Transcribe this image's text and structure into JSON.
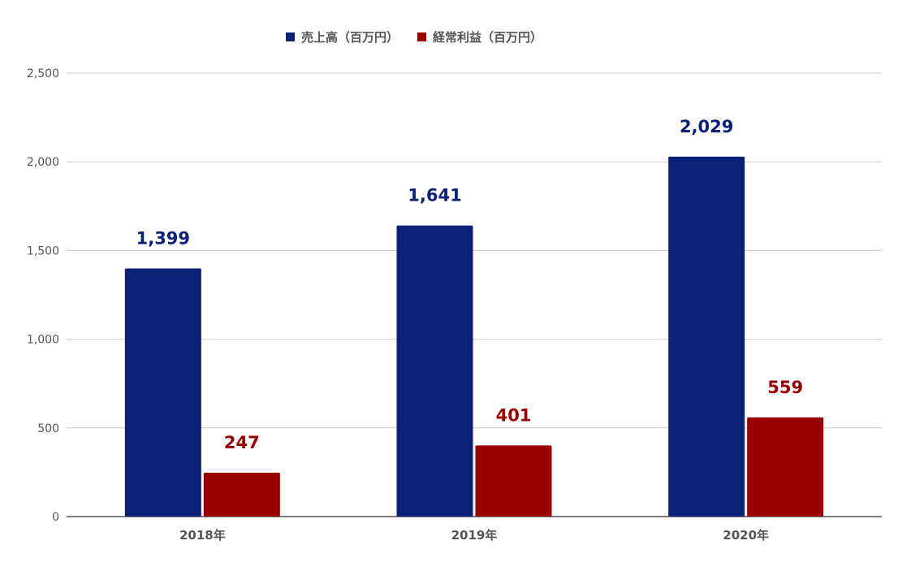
{
  "chart_data": {
    "type": "bar",
    "categories": [
      "2018年",
      "2019年",
      "2020年"
    ],
    "series": [
      {
        "name": "売上高（百万円）",
        "values": [
          1399,
          1641,
          2029
        ],
        "color": "#0b2178"
      },
      {
        "name": "経常利益（百万円）",
        "values": [
          247,
          401,
          559
        ],
        "color": "#9b0000"
      }
    ],
    "value_labels": [
      [
        "1,399",
        "1,641",
        "2,029"
      ],
      [
        "247",
        "401",
        "559"
      ]
    ],
    "yticks": [
      0,
      500,
      1000,
      1500,
      2000,
      2500
    ],
    "ytick_labels": [
      "0",
      "500",
      "1,000",
      "1,500",
      "2,000",
      "2,500"
    ],
    "ylim": [
      0,
      2500
    ],
    "grid": true,
    "legend_position": "top-center",
    "title": "",
    "xlabel": "",
    "ylabel": ""
  }
}
